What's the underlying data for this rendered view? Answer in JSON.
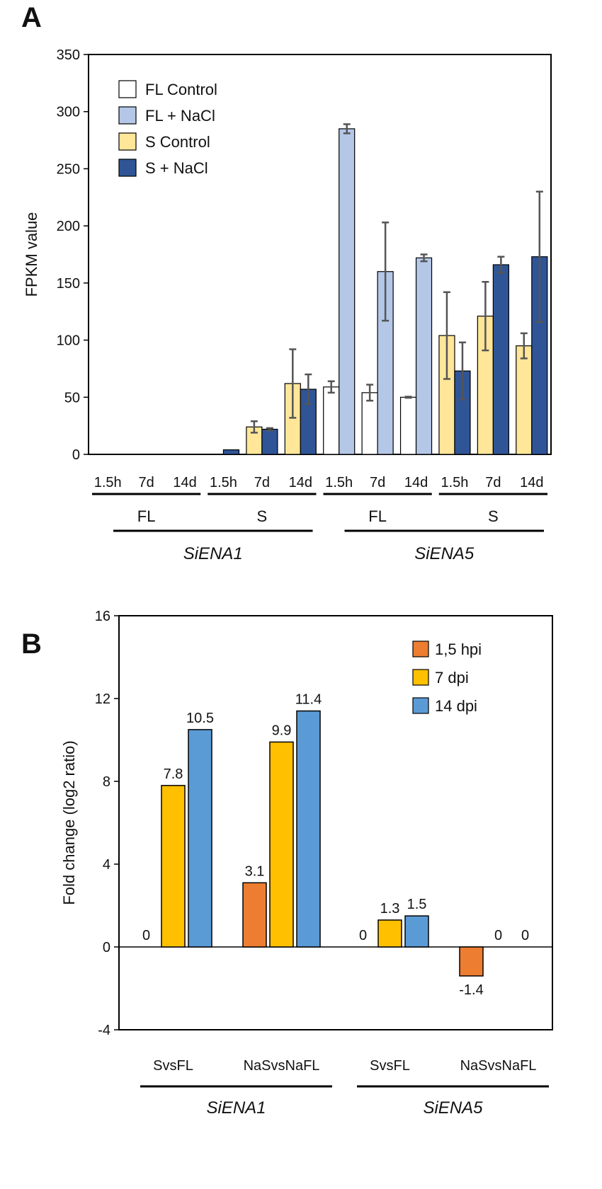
{
  "chart_data": [
    {
      "panel": "A",
      "type": "bar",
      "ylabel": "FPKM value",
      "ylim": [
        0,
        350
      ],
      "yticks": [
        0,
        50,
        100,
        150,
        200,
        250,
        300,
        350
      ],
      "legend": "top-left",
      "categories": [
        "1.5h",
        "7d",
        "14d",
        "1.5h",
        "7d",
        "14d",
        "1.5h",
        "7d",
        "14d",
        "1.5h",
        "7d",
        "14d"
      ],
      "groups": [
        {
          "label": "FL",
          "start": 0,
          "end": 2
        },
        {
          "label": "S",
          "start": 3,
          "end": 5
        },
        {
          "label": "FL",
          "start": 6,
          "end": 8
        },
        {
          "label": "S",
          "start": 9,
          "end": 11
        }
      ],
      "genes": [
        {
          "label": "SiENA1",
          "start": 0,
          "end": 5
        },
        {
          "label": "SiENA5",
          "start": 6,
          "end": 11
        }
      ],
      "series": [
        {
          "name": "FL Control",
          "color": "#ffffff",
          "values": [
            0,
            0,
            0,
            null,
            null,
            null,
            59,
            54,
            50,
            null,
            null,
            null
          ],
          "errors": [
            0,
            0,
            0,
            null,
            null,
            null,
            5,
            7,
            0.5,
            null,
            null,
            null
          ]
        },
        {
          "name": "FL + NaCl",
          "color": "#b4c7e7",
          "values": [
            0,
            0,
            0,
            null,
            null,
            null,
            285,
            160,
            172,
            null,
            null,
            null
          ],
          "errors": [
            0,
            0,
            0,
            null,
            null,
            null,
            4,
            43,
            3,
            null,
            null,
            null
          ]
        },
        {
          "name": "S Control",
          "color": "#ffe699",
          "values": [
            null,
            null,
            null,
            0,
            24,
            62,
            null,
            null,
            null,
            104,
            121,
            95
          ],
          "errors": [
            null,
            null,
            null,
            0,
            5,
            30,
            null,
            null,
            null,
            38,
            30,
            11
          ]
        },
        {
          "name": "S + NaCl",
          "color": "#2f5597",
          "values": [
            null,
            null,
            null,
            4,
            22,
            57,
            null,
            null,
            null,
            73,
            166,
            173
          ],
          "errors": [
            null,
            null,
            null,
            0,
            1,
            13,
            null,
            null,
            null,
            25,
            7,
            57
          ]
        }
      ]
    },
    {
      "panel": "B",
      "type": "bar",
      "ylabel": "Fold change (log2 ratio)",
      "ylim": [
        -4,
        16
      ],
      "yticks": [
        -4,
        0,
        4,
        8,
        12,
        16
      ],
      "legend": "top-right",
      "categories": [
        "SvsFL",
        "NaSvsNaFL",
        "SvsFL",
        "NaSvsNaFL"
      ],
      "genes": [
        {
          "label": "SiENA1",
          "start": 0,
          "end": 1
        },
        {
          "label": "SiENA5",
          "start": 2,
          "end": 3
        }
      ],
      "series": [
        {
          "name": "1,5 hpi",
          "color": "#ed7d31",
          "values": [
            0,
            3.1,
            0,
            -1.4
          ],
          "labels": [
            "0",
            "3.1",
            "0",
            "-1.4"
          ]
        },
        {
          "name": "7 dpi",
          "color": "#ffc000",
          "values": [
            7.8,
            9.9,
            1.3,
            0
          ],
          "labels": [
            "7.8",
            "9.9",
            "1.3",
            "0"
          ]
        },
        {
          "name": "14 dpi",
          "color": "#5b9bd5",
          "values": [
            10.5,
            11.4,
            1.5,
            0
          ],
          "labels": [
            "10.5",
            "11.4",
            "1.5",
            "0"
          ]
        }
      ]
    }
  ]
}
